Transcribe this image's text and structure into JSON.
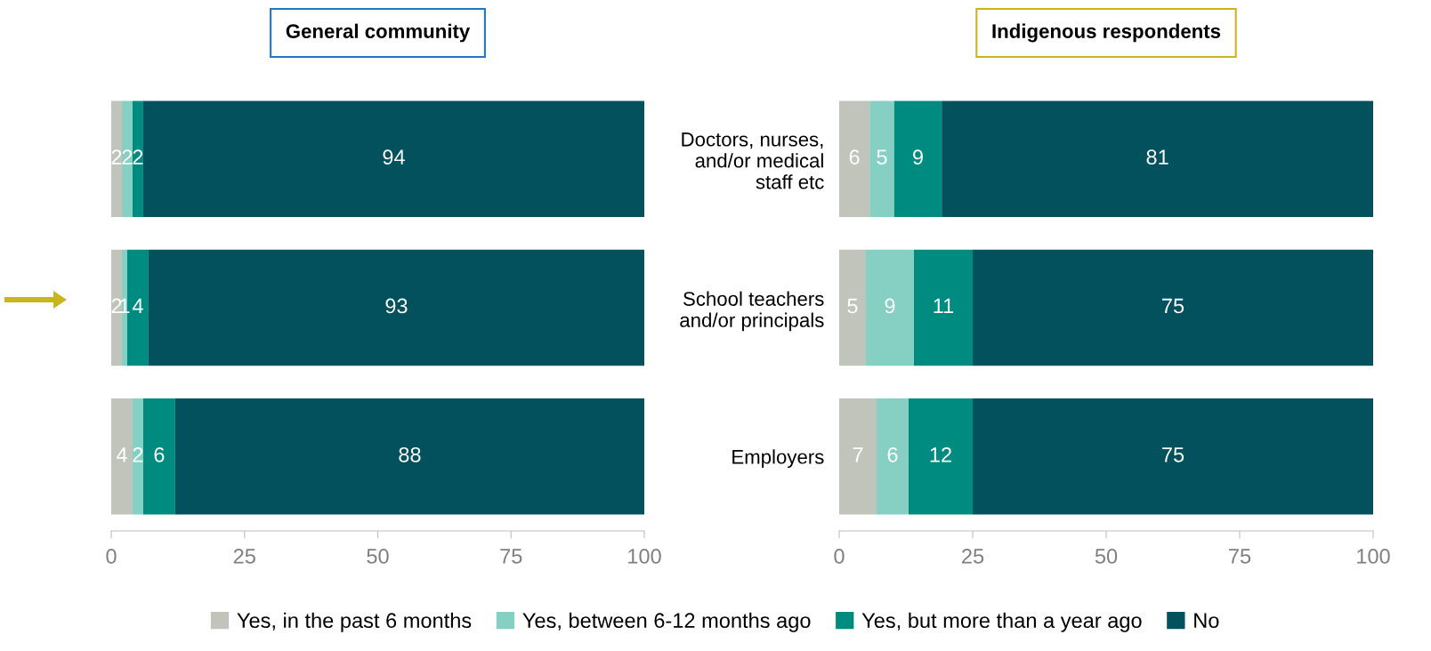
{
  "chart_data": [
    {
      "type": "bar",
      "orientation": "horizontal",
      "stacked": true,
      "title": "General community",
      "categories": [
        null,
        null,
        null
      ],
      "series": [
        {
          "name": "Yes, in the past 6 months",
          "color": "#c0c4bb",
          "values": [
            2,
            2,
            4
          ]
        },
        {
          "name": "Yes, between 6-12 months ago",
          "color": "#86d0c3",
          "values": [
            2,
            1,
            2
          ]
        },
        {
          "name": "Yes, but more than a year ago",
          "color": "#008b80",
          "values": [
            2,
            4,
            6
          ]
        },
        {
          "name": "No",
          "color": "#03515c",
          "values": [
            94,
            93,
            88
          ]
        }
      ],
      "data_labels": true,
      "xlim": [
        0,
        100
      ],
      "xticks": [
        0,
        25,
        50,
        75,
        100
      ],
      "tick_labels": "x",
      "grid": false,
      "legend": "bottom"
    },
    {
      "type": "bar",
      "orientation": "horizontal",
      "stacked": true,
      "title": "Indigenous respondents",
      "categories": [
        "Doctors, nurses,\nand/or medical\nstaff etc",
        "School teachers\nand/or principals",
        "Employers"
      ],
      "series": [
        {
          "color": "#c0c4bb",
          "values": [
            5.7,
            5,
            7
          ],
          "value_labels": [
            "6",
            "5",
            "7"
          ]
        },
        {
          "color": "#86d0c3",
          "values": [
            4.6,
            9,
            6
          ],
          "value_labels": [
            "5",
            "9",
            "6"
          ]
        },
        {
          "color": "#008b80",
          "values": [
            8.9,
            11,
            12
          ],
          "value_labels": [
            "9",
            "11",
            "12"
          ]
        },
        {
          "color": "#03515c",
          "values": [
            80.8,
            75,
            75
          ],
          "value_labels": [
            "81",
            "75",
            "75"
          ]
        }
      ],
      "xlim": [
        0,
        100
      ],
      "xticks": [
        0,
        25,
        50,
        75,
        100
      ],
      "grid": false
    }
  ]
}
